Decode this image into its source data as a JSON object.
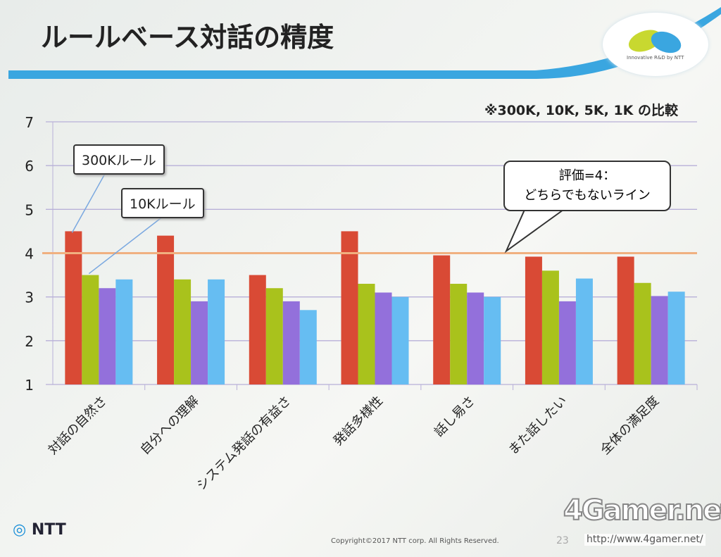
{
  "title": "ルールベース対話の精度",
  "header_logo": {
    "subtitle": "Innovative R&D by NTT"
  },
  "note": "※300K, 10K, 5K, 1K の比較",
  "callouts": {
    "c300k": "300Kルール",
    "c10k": "10Kルール",
    "ref_line1": "評価=4：",
    "ref_line2": "どちらでもないライン"
  },
  "footer": {
    "brand": "NTT",
    "copyright": "Copyright©2017 NTT corp. All Rights Reserved.",
    "page": "23"
  },
  "watermark": {
    "logo": "4Gamer.net",
    "url": "http://www.4gamer.net/"
  },
  "colors": {
    "series": [
      "#d94a35",
      "#a9c21c",
      "#9370db",
      "#66bdf2"
    ],
    "ref_line": "#f0b080"
  },
  "chart_data": {
    "type": "bar",
    "categories": [
      "対話の自然さ",
      "自分への理解",
      "システム発話の有益さ",
      "発話多様性",
      "話し易さ",
      "また話したい",
      "全体の満足度"
    ],
    "series": [
      {
        "name": "300K",
        "values": [
          4.5,
          4.4,
          3.5,
          4.5,
          3.95,
          3.92,
          3.92
        ]
      },
      {
        "name": "10K",
        "values": [
          3.5,
          3.4,
          3.2,
          3.3,
          3.3,
          3.6,
          3.32
        ]
      },
      {
        "name": "5K",
        "values": [
          3.2,
          2.9,
          2.9,
          3.1,
          3.1,
          2.9,
          3.02
        ]
      },
      {
        "name": "1K",
        "values": [
          3.4,
          3.4,
          2.7,
          3.0,
          3.0,
          3.42,
          3.12
        ]
      }
    ],
    "ylim": [
      1,
      7
    ],
    "yticks": [
      1,
      2,
      3,
      4,
      5,
      6,
      7
    ],
    "reference_line": 4,
    "grid": true,
    "xlabel": "",
    "ylabel": ""
  }
}
